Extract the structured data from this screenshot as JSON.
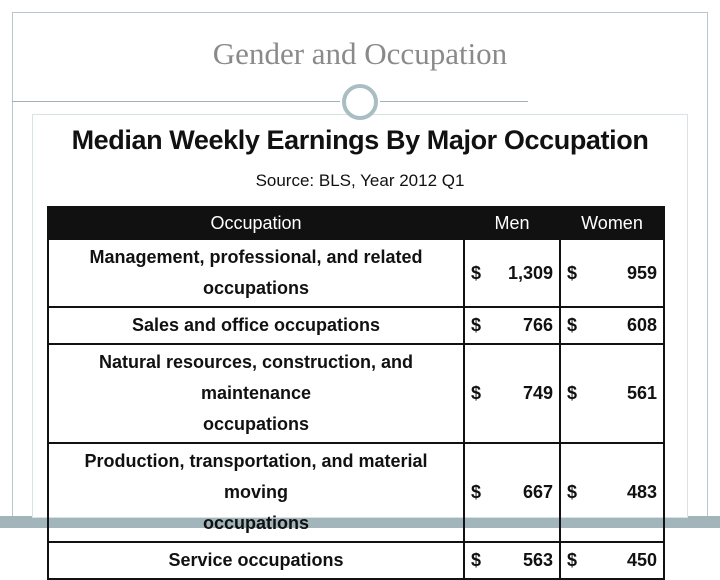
{
  "slide": {
    "title": "Gender and Occupation"
  },
  "table_title": "Median Weekly Earnings By Major Occupation",
  "table_source": "Source: BLS, Year 2012 Q1",
  "table": {
    "headers": {
      "occupation": "Occupation",
      "men": "Men",
      "women": "Women"
    },
    "currency_symbol": "$",
    "rows": [
      {
        "line1": "Management, professional, and related",
        "line2": "occupations",
        "men": "1,309",
        "women": "959"
      },
      {
        "line1": "Sales and office occupations",
        "line2": "",
        "men": "766",
        "women": "608"
      },
      {
        "line1": "Natural resources, construction, and maintenance",
        "line2": "occupations",
        "men": "749",
        "women": "561"
      },
      {
        "line1": "Production, transportation, and material moving",
        "line2": "occupations",
        "men": "667",
        "women": "483"
      },
      {
        "line1": "Service occupations",
        "line2": "",
        "men": "563",
        "women": "450"
      }
    ]
  }
}
